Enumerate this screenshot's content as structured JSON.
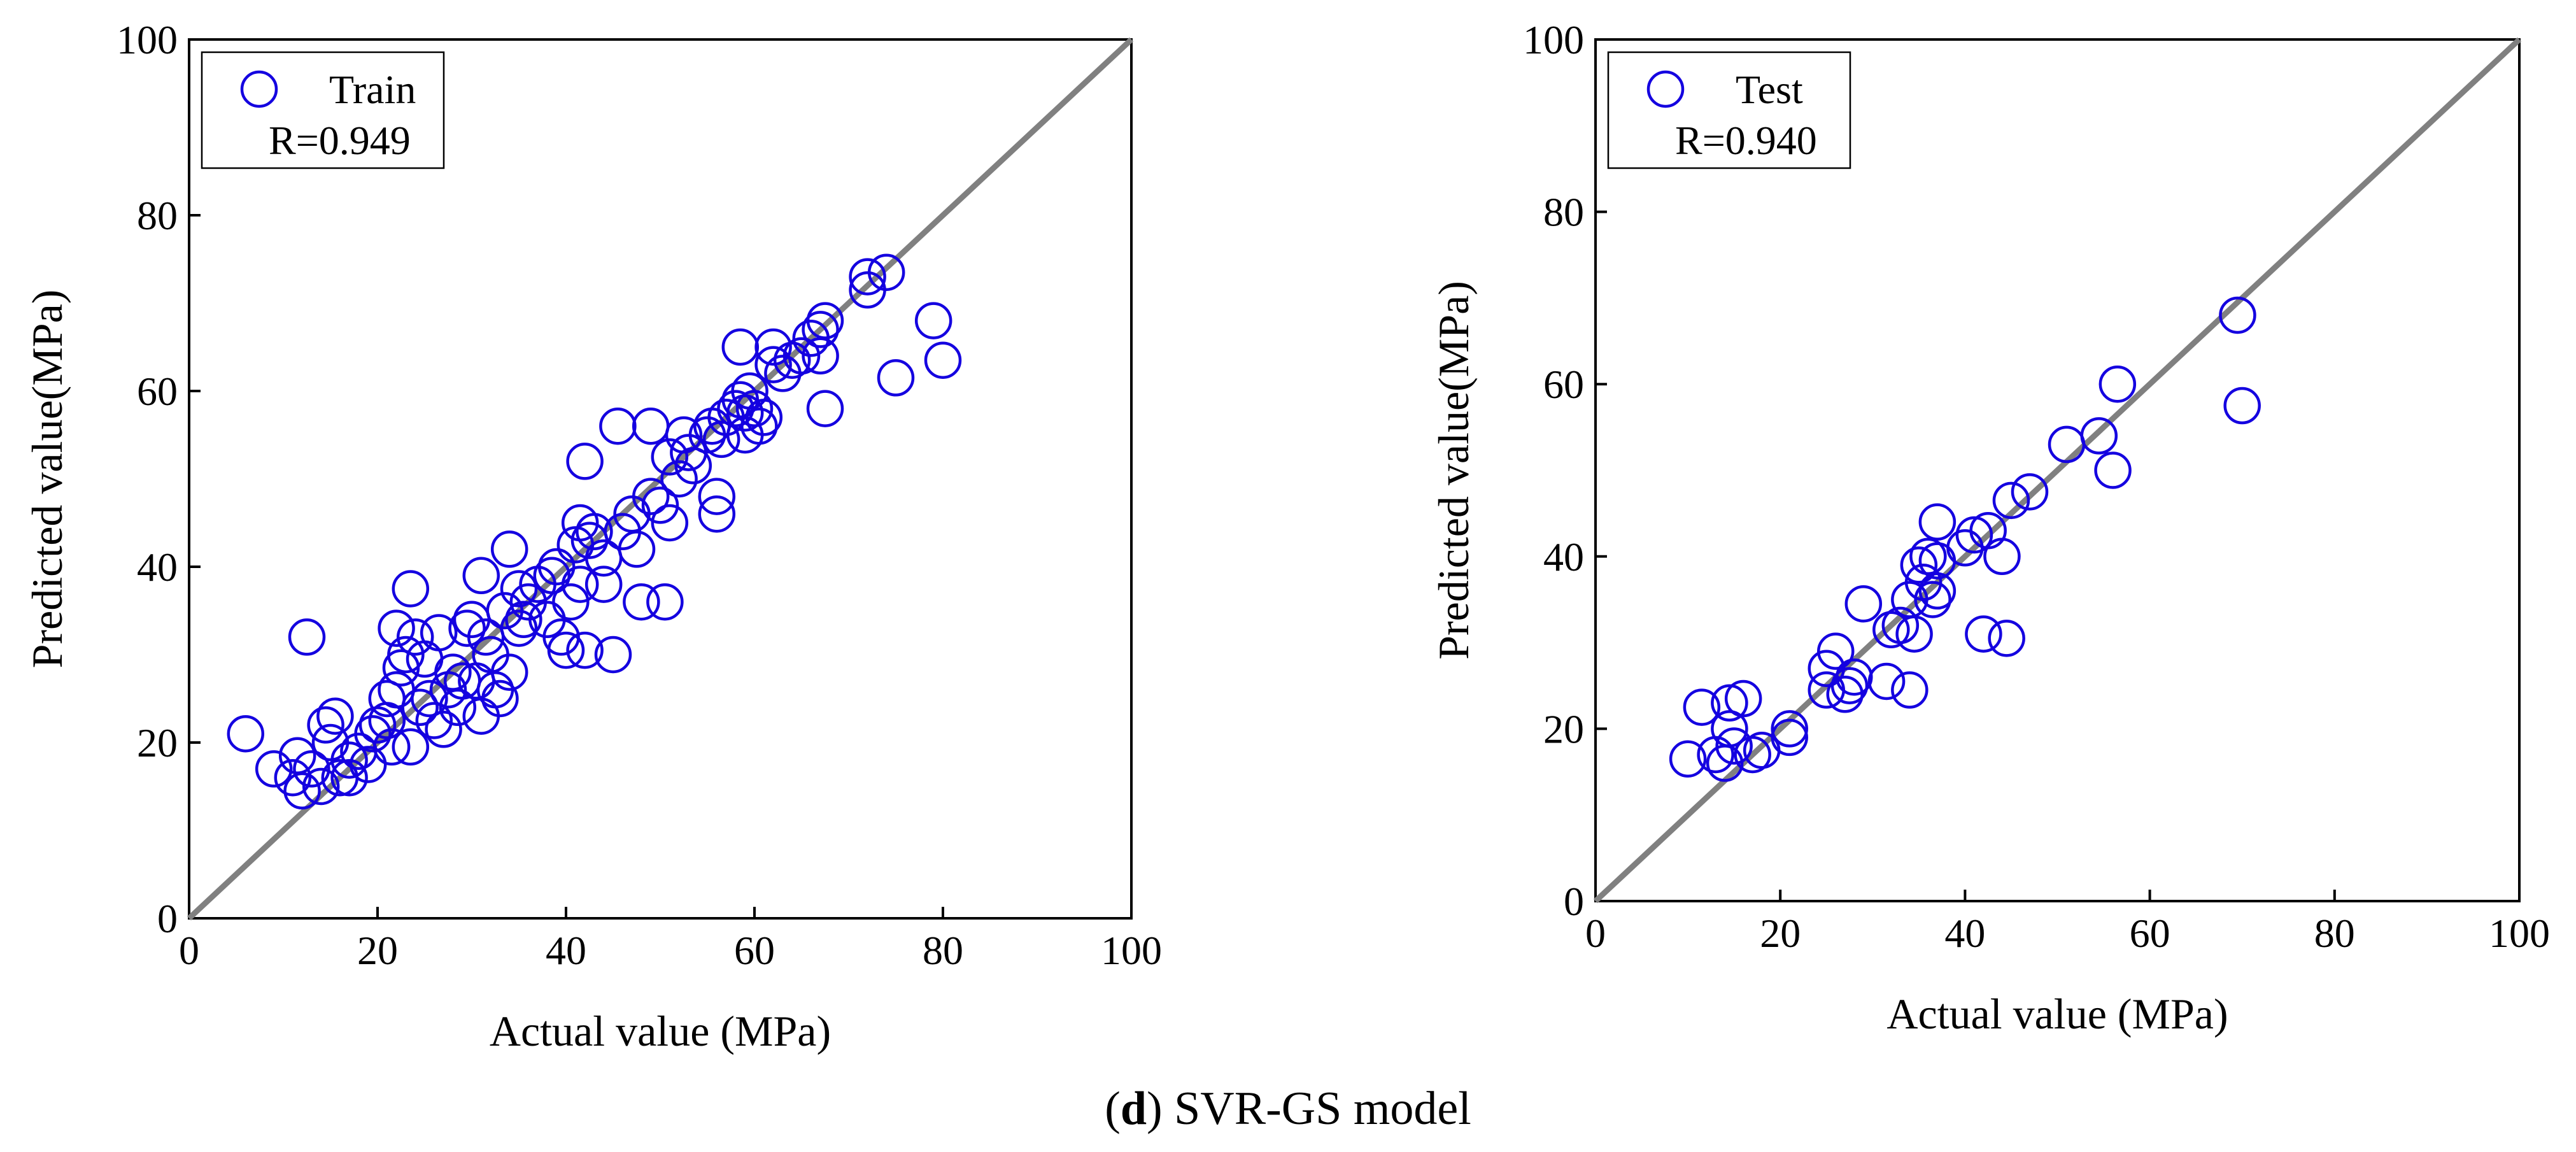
{
  "caption": {
    "letter": "d",
    "text": "SVR-GS model"
  },
  "colors": {
    "point": "#1400e0",
    "diagonal": "#808080",
    "axis": "#000000"
  },
  "chart_data": [
    {
      "type": "scatter",
      "xlabel": "Actual value (MPa)",
      "ylabel": "Predicted value(MPa)",
      "xlim": [
        0,
        100
      ],
      "ylim": [
        0,
        100
      ],
      "xticks": [
        "0",
        "20",
        "40",
        "60",
        "80",
        "100"
      ],
      "yticks": [
        "0",
        "20",
        "40",
        "60",
        "80",
        "100"
      ],
      "legend": {
        "label": "Train",
        "stat": "R=0.949",
        "location": "top-left"
      },
      "reference_line": "y = x",
      "points": [
        [
          6,
          21
        ],
        [
          9,
          17
        ],
        [
          11,
          16
        ],
        [
          11.5,
          18.5
        ],
        [
          12,
          14.5
        ],
        [
          12.5,
          32
        ],
        [
          13,
          17
        ],
        [
          14,
          15
        ],
        [
          14.5,
          22
        ],
        [
          15,
          20
        ],
        [
          15.5,
          23
        ],
        [
          16,
          16
        ],
        [
          17,
          18
        ],
        [
          17,
          16
        ],
        [
          18,
          19
        ],
        [
          19,
          17.5
        ],
        [
          19.5,
          21
        ],
        [
          20,
          22
        ],
        [
          21,
          25
        ],
        [
          21,
          22.5
        ],
        [
          21.5,
          19.5
        ],
        [
          22,
          33
        ],
        [
          22,
          26
        ],
        [
          22.5,
          28.5
        ],
        [
          23,
          30
        ],
        [
          23.5,
          37.5
        ],
        [
          23.5,
          19.5
        ],
        [
          24,
          32
        ],
        [
          24.5,
          24
        ],
        [
          25,
          29.5
        ],
        [
          25.5,
          25
        ],
        [
          26,
          22.5
        ],
        [
          26.5,
          32.5
        ],
        [
          27,
          21.5
        ],
        [
          27.5,
          26
        ],
        [
          28,
          28
        ],
        [
          28.5,
          24
        ],
        [
          29,
          27
        ],
        [
          29.5,
          33
        ],
        [
          30,
          34
        ],
        [
          30.5,
          27
        ],
        [
          31,
          23
        ],
        [
          31,
          39
        ],
        [
          31.5,
          32
        ],
        [
          32,
          30
        ],
        [
          32.5,
          26
        ],
        [
          33,
          25
        ],
        [
          33.5,
          35
        ],
        [
          34,
          42
        ],
        [
          34,
          28
        ],
        [
          35,
          37.5
        ],
        [
          35,
          33
        ],
        [
          35.5,
          34
        ],
        [
          36,
          36
        ],
        [
          37,
          38
        ],
        [
          38,
          34
        ],
        [
          38.5,
          39
        ],
        [
          39,
          40
        ],
        [
          39.5,
          32
        ],
        [
          40,
          30.5
        ],
        [
          40.5,
          36
        ],
        [
          41,
          42.5
        ],
        [
          41.5,
          45
        ],
        [
          41.5,
          38
        ],
        [
          42,
          30.5
        ],
        [
          42,
          52
        ],
        [
          42.5,
          43
        ],
        [
          43,
          44
        ],
        [
          44,
          38
        ],
        [
          44,
          41
        ],
        [
          45,
          30
        ],
        [
          45.5,
          56
        ],
        [
          46,
          44
        ],
        [
          47,
          46
        ],
        [
          47.5,
          42
        ],
        [
          48,
          36
        ],
        [
          49,
          48
        ],
        [
          49,
          56
        ],
        [
          50,
          47
        ],
        [
          50.5,
          36
        ],
        [
          51,
          52.5
        ],
        [
          51,
          45
        ],
        [
          52,
          50
        ],
        [
          52.5,
          55
        ],
        [
          53,
          53
        ],
        [
          53.5,
          51.5
        ],
        [
          55,
          55
        ],
        [
          55.5,
          56
        ],
        [
          56,
          48
        ],
        [
          56,
          46
        ],
        [
          56.5,
          54.5
        ],
        [
          57,
          57
        ],
        [
          58,
          58
        ],
        [
          58.5,
          59
        ],
        [
          58.5,
          65
        ],
        [
          59,
          55
        ],
        [
          59,
          57.5
        ],
        [
          59.5,
          60
        ],
        [
          60,
          58
        ],
        [
          60.5,
          56
        ],
        [
          61,
          57
        ],
        [
          62,
          65
        ],
        [
          62,
          63
        ],
        [
          63,
          62
        ],
        [
          64,
          63.5
        ],
        [
          65,
          64
        ],
        [
          66,
          66
        ],
        [
          67,
          67
        ],
        [
          67,
          64
        ],
        [
          67.5,
          68
        ],
        [
          67.5,
          58
        ],
        [
          72,
          73
        ],
        [
          72,
          71.5
        ],
        [
          74,
          73.5
        ],
        [
          75,
          61.5
        ],
        [
          79,
          68
        ],
        [
          80,
          63.5
        ]
      ]
    },
    {
      "type": "scatter",
      "xlabel": "Actual value (MPa)",
      "ylabel": "Predicted value(MPa)",
      "xlim": [
        0,
        100
      ],
      "ylim": [
        0,
        100
      ],
      "xticks": [
        "0",
        "20",
        "40",
        "60",
        "80",
        "100"
      ],
      "yticks": [
        "0",
        "20",
        "40",
        "60",
        "80",
        "100"
      ],
      "legend": {
        "label": "Test",
        "stat": "R=0.940",
        "location": "top-left"
      },
      "reference_line": "y = x",
      "points": [
        [
          10,
          16.5
        ],
        [
          11.5,
          22.5
        ],
        [
          13,
          17
        ],
        [
          14,
          16
        ],
        [
          14.5,
          20
        ],
        [
          14.5,
          23
        ],
        [
          15,
          18
        ],
        [
          16,
          23.5
        ],
        [
          17,
          17
        ],
        [
          18,
          17.5
        ],
        [
          21,
          19
        ],
        [
          21,
          20
        ],
        [
          25,
          24.5
        ],
        [
          25,
          27
        ],
        [
          26,
          29
        ],
        [
          27,
          24
        ],
        [
          27.5,
          25
        ],
        [
          28,
          26
        ],
        [
          29,
          34.5
        ],
        [
          31.5,
          25.5
        ],
        [
          32,
          31.5
        ],
        [
          33,
          32
        ],
        [
          34,
          24.5
        ],
        [
          34,
          35
        ],
        [
          34.5,
          31
        ],
        [
          35,
          39
        ],
        [
          35.5,
          37
        ],
        [
          36,
          40
        ],
        [
          36.5,
          35
        ],
        [
          37,
          36
        ],
        [
          37,
          44
        ],
        [
          37,
          39.5
        ],
        [
          40,
          41
        ],
        [
          41,
          42.5
        ],
        [
          42,
          31
        ],
        [
          42.5,
          43
        ],
        [
          44,
          40
        ],
        [
          44.5,
          30.5
        ],
        [
          45,
          46.5
        ],
        [
          47,
          47.5
        ],
        [
          51,
          53
        ],
        [
          54.5,
          54
        ],
        [
          56,
          50
        ],
        [
          56.5,
          60
        ],
        [
          69.5,
          68
        ],
        [
          70,
          57.5
        ]
      ]
    }
  ]
}
